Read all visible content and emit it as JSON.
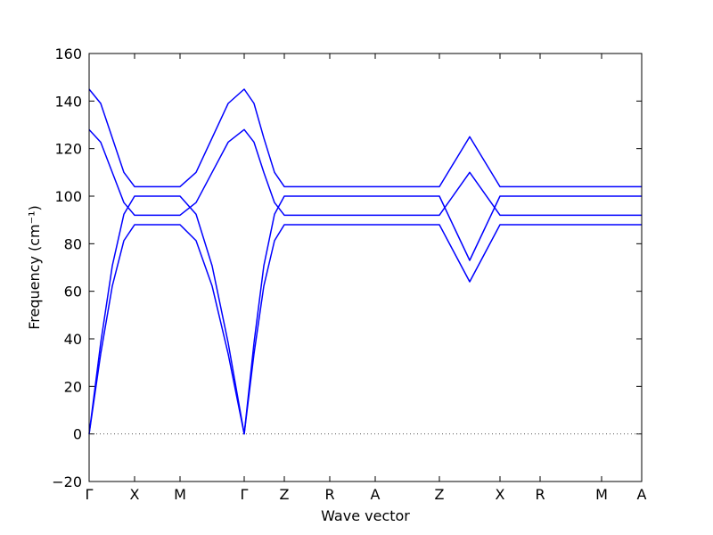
{
  "chart_data": {
    "type": "line",
    "xlabel": "Wave vector",
    "ylabel": "Frequency (cm⁻¹)",
    "x": [
      0,
      13,
      26,
      39,
      51,
      102,
      120,
      138,
      156,
      174,
      185,
      196,
      208,
      219,
      393,
      410,
      427,
      444,
      461,
      620
    ],
    "series": [
      {
        "color": "#0000ff",
        "values": [
          0,
          33.7,
          62.2,
          81.3,
          88,
          88,
          81.3,
          62.2,
          33.7,
          0,
          33.7,
          62.2,
          81.3,
          88,
          88,
          76,
          64,
          76,
          88,
          88
        ]
      },
      {
        "color": "#0000ff",
        "values": [
          0,
          38.3,
          70.7,
          92.4,
          100,
          100,
          92.4,
          70.7,
          38.3,
          0,
          38.3,
          70.7,
          92.4,
          100,
          100,
          86.5,
          73,
          86.5,
          100,
          100
        ]
      },
      {
        "color": "#0000ff",
        "values": [
          128,
          122.7,
          110,
          97.3,
          92,
          92,
          97.3,
          110,
          122.7,
          128,
          122.7,
          110,
          97.3,
          92,
          92,
          101,
          110,
          101,
          92,
          92
        ]
      },
      {
        "color": "#0000ff",
        "values": [
          145,
          139,
          124.5,
          110,
          104,
          104,
          110,
          124.5,
          139,
          145,
          139,
          124.5,
          110,
          104,
          104,
          114.5,
          125,
          114.5,
          104,
          104
        ]
      }
    ],
    "xlim": [
      0,
      620
    ],
    "xticks": [
      {
        "value": 0,
        "label": "Γ"
      },
      {
        "value": 51,
        "label": "X"
      },
      {
        "value": 102,
        "label": "M"
      },
      {
        "value": 174,
        "label": "Γ"
      },
      {
        "value": 219,
        "label": "Z"
      },
      {
        "value": 270,
        "label": "R"
      },
      {
        "value": 321,
        "label": "A"
      },
      {
        "value": 393,
        "label": "Z"
      },
      {
        "value": 461,
        "label": "X"
      },
      {
        "value": 506,
        "label": "R"
      },
      {
        "value": 575,
        "label": "M"
      },
      {
        "value": 620,
        "label": "A"
      }
    ],
    "ylim": [
      -20,
      160
    ],
    "yticks": [
      {
        "value": -20,
        "label": "−20"
      },
      0,
      20,
      40,
      60,
      80,
      100,
      120,
      140,
      160
    ],
    "zero_line": true,
    "grid": false
  }
}
